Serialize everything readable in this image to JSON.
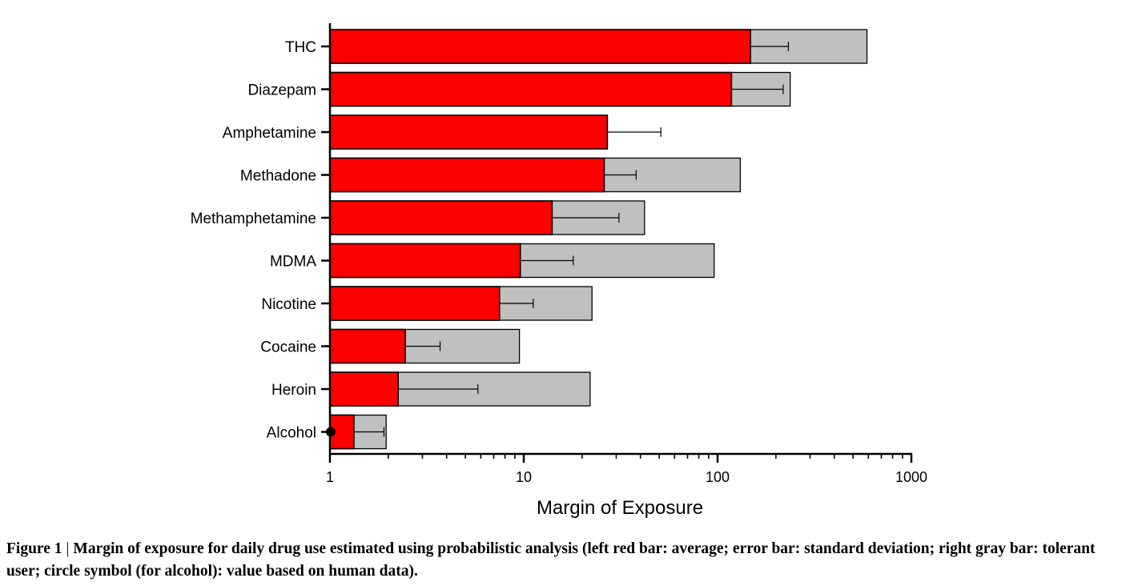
{
  "chart_data": {
    "type": "bar",
    "orientation": "horizontal",
    "xscale": "log",
    "xlim": [
      1,
      1000
    ],
    "xticks": [
      1,
      10,
      100,
      1000
    ],
    "xtick_labels": [
      "1",
      "10",
      "100",
      "1000"
    ],
    "xlabel": "Margin of Exposure",
    "ylabel": "",
    "categories": [
      "THC",
      "Diazepam",
      "Amphetamine",
      "Methadone",
      "Methamphetamine",
      "MDMA",
      "Nicotine",
      "Cocaine",
      "Heroin",
      "Alcohol"
    ],
    "series": [
      {
        "name": "average",
        "color": "#ff0000",
        "values": [
          148,
          118,
          27,
          26,
          14,
          9.6,
          7.5,
          2.45,
          2.25,
          1.33
        ]
      },
      {
        "name": "standard deviation",
        "kind": "error_upper",
        "values": [
          232,
          218,
          51,
          38,
          31,
          18,
          11.2,
          3.7,
          5.8,
          1.9
        ]
      },
      {
        "name": "tolerant user",
        "color": "#c0c0c0",
        "values": [
          590,
          237,
          null,
          131,
          42,
          96,
          22.5,
          9.5,
          22,
          1.95
        ]
      },
      {
        "name": "human data",
        "kind": "marker",
        "marker": "circle",
        "color": "#000000",
        "values": [
          null,
          null,
          null,
          null,
          null,
          null,
          null,
          null,
          null,
          1.0
        ]
      }
    ]
  },
  "caption": {
    "label": "Figure 1",
    "separator": "|",
    "text": "Margin of exposure for daily drug use estimated using probabilistic analysis (left red bar: average; error bar: standard deviation; right gray bar: tolerant user; circle symbol (for alcohol): value based on human data)."
  }
}
